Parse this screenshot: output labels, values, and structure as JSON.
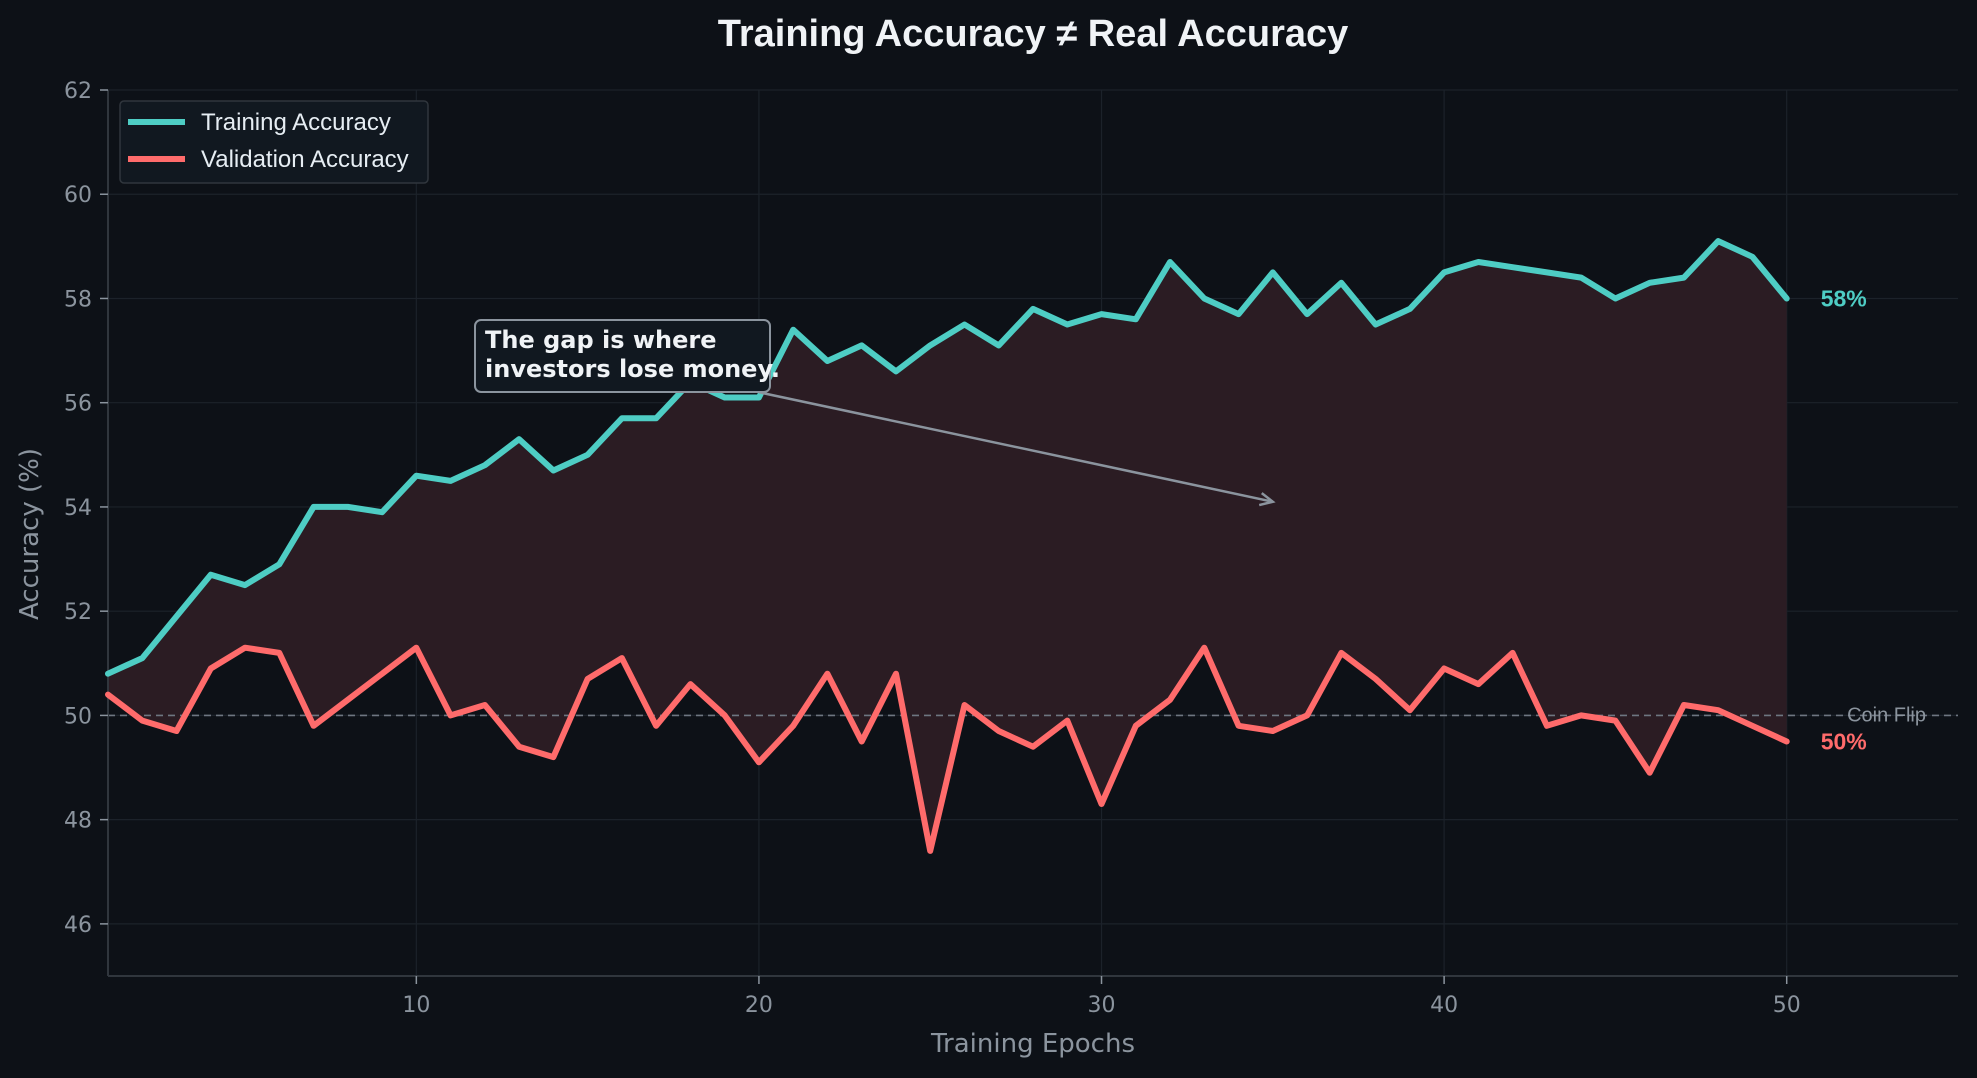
{
  "chart_data": {
    "type": "line",
    "title": "Training Accuracy ≠ Real Accuracy",
    "xlabel": "Training Epochs",
    "ylabel": "Accuracy (%)",
    "xlim": [
      1,
      55
    ],
    "ylim": [
      45,
      62
    ],
    "xticks": [
      10,
      20,
      30,
      40,
      50
    ],
    "yticks": [
      46,
      48,
      50,
      52,
      54,
      56,
      58,
      60,
      62
    ],
    "grid": true,
    "legend_position": "top-left",
    "x": [
      1,
      2,
      3,
      4,
      5,
      6,
      7,
      8,
      9,
      10,
      11,
      12,
      13,
      14,
      15,
      16,
      17,
      18,
      19,
      20,
      21,
      22,
      23,
      24,
      25,
      26,
      27,
      28,
      29,
      30,
      31,
      32,
      33,
      34,
      35,
      36,
      37,
      38,
      39,
      40,
      41,
      42,
      43,
      44,
      45,
      46,
      47,
      48,
      49,
      50
    ],
    "series": [
      {
        "name": "Training Accuracy",
        "color": "#4ecdc4",
        "values": [
          50.8,
          51.1,
          51.9,
          52.7,
          52.5,
          52.9,
          54.0,
          54.0,
          53.9,
          54.6,
          54.5,
          54.8,
          55.3,
          54.7,
          55.0,
          55.7,
          55.7,
          56.4,
          56.1,
          56.1,
          57.4,
          56.8,
          57.1,
          56.6,
          57.1,
          57.5,
          57.1,
          57.8,
          57.5,
          57.7,
          57.6,
          58.7,
          58.0,
          57.7,
          58.5,
          57.7,
          58.3,
          57.5,
          57.8,
          58.5,
          58.7,
          58.6,
          58.5,
          58.4,
          58.0,
          58.3,
          58.4,
          59.1,
          58.8,
          58.0
        ]
      },
      {
        "name": "Validation Accuracy",
        "color": "#ff6b6b",
        "values": [
          50.4,
          49.9,
          49.7,
          50.9,
          51.3,
          51.2,
          49.8,
          50.3,
          50.8,
          51.3,
          50.0,
          50.2,
          49.4,
          49.2,
          50.7,
          51.1,
          49.8,
          50.6,
          50.0,
          49.1,
          49.8,
          50.8,
          49.5,
          50.8,
          47.4,
          50.2,
          49.7,
          49.4,
          49.9,
          48.3,
          49.8,
          50.3,
          51.3,
          49.8,
          49.7,
          50.0,
          51.2,
          50.7,
          50.1,
          50.9,
          50.6,
          51.2,
          49.8,
          50.0,
          49.9,
          48.9,
          50.2,
          50.1,
          49.8,
          49.5
        ]
      }
    ],
    "end_labels": [
      {
        "text": "58%",
        "color": "#4ecdc4",
        "y": 58.0
      },
      {
        "text": "50%",
        "color": "#ff6b6b",
        "y": 49.5
      }
    ],
    "reference_line": {
      "y": 50,
      "label": "Coin Flip"
    },
    "annotation": {
      "lines": [
        "The gap is where",
        "investors lose money."
      ],
      "arrow_from_x": 20,
      "arrow_from_y": 56.2,
      "arrow_to_x": 35,
      "arrow_to_y": 54.1
    }
  },
  "colors": {
    "background": "#0d1117",
    "grid": "#1c222a",
    "axis": "#30363d",
    "gap_fill": "#2b1c23",
    "annotation_border": "#8b949e",
    "annotation_bg": "#111820",
    "reference_line": "#6e7681"
  }
}
